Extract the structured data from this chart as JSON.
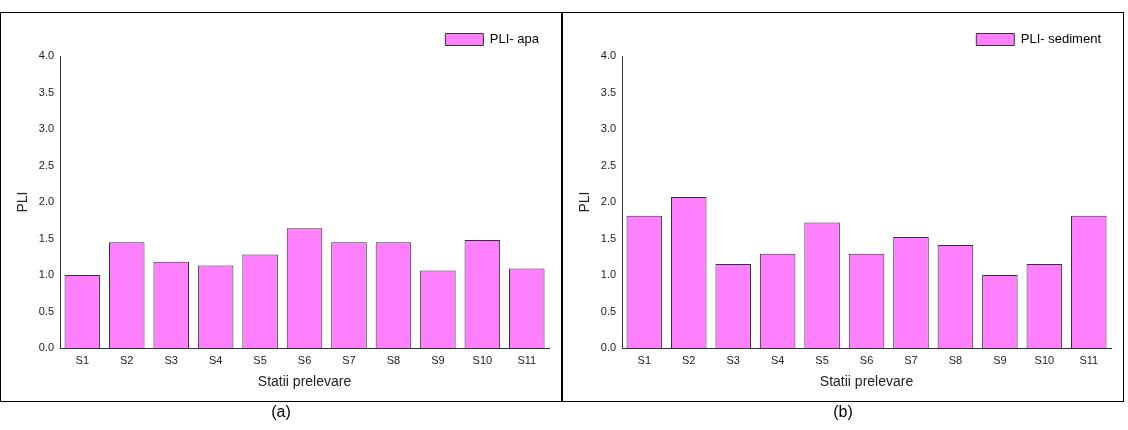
{
  "chart_data": [
    {
      "type": "bar",
      "xlabel": "Statii prelevare",
      "ylabel": "PLI",
      "categories": [
        "S1",
        "S2",
        "S3",
        "S4",
        "S5",
        "S6",
        "S7",
        "S8",
        "S9",
        "S10",
        "S11"
      ],
      "series": [
        {
          "name": "PLI- apa",
          "color": "#ff80ff",
          "values": [
            1.0,
            1.45,
            1.18,
            1.13,
            1.28,
            1.64,
            1.45,
            1.45,
            1.06,
            1.48,
            1.09
          ]
        }
      ],
      "ylim": [
        0,
        4
      ],
      "yticks": [
        {
          "value": 0,
          "label": "0.0"
        },
        {
          "value": 0.5,
          "label": "0.5"
        },
        {
          "value": 1,
          "label": "1.0"
        },
        {
          "value": 1.5,
          "label": "1.5"
        },
        {
          "value": 2,
          "label": "2.0"
        },
        {
          "value": 2.5,
          "label": "2.5"
        },
        {
          "value": 3,
          "label": "3.0"
        },
        {
          "value": 3.5,
          "label": "3.5"
        },
        {
          "value": 4,
          "label": "4.0"
        }
      ],
      "grid": false,
      "legend": "top right",
      "annotations": [
        "(a)"
      ]
    },
    {
      "type": "bar",
      "xlabel": "Statii prelevare",
      "ylabel": "PLI",
      "categories": [
        "S1",
        "S2",
        "S3",
        "S4",
        "S5",
        "S6",
        "S7",
        "S8",
        "S9",
        "S10",
        "S11"
      ],
      "series": [
        {
          "name": "PLI- sediment",
          "color": "#ff80ff",
          "values": [
            1.81,
            2.07,
            1.15,
            1.29,
            1.72,
            1.29,
            1.52,
            1.41,
            1.0,
            1.15,
            1.81
          ]
        }
      ],
      "ylim": [
        0,
        4
      ],
      "yticks": [
        {
          "value": 0,
          "label": "0.0"
        },
        {
          "value": 0.5,
          "label": "0.5"
        },
        {
          "value": 1,
          "label": "1.0"
        },
        {
          "value": 1.5,
          "label": "1.5"
        },
        {
          "value": 2,
          "label": "2.0"
        },
        {
          "value": 2.5,
          "label": "2.5"
        },
        {
          "value": 3,
          "label": "3.0"
        },
        {
          "value": 3.5,
          "label": "3.5"
        },
        {
          "value": 4,
          "label": "4.0"
        }
      ],
      "grid": false,
      "legend": "top right",
      "annotations": [
        "(b)"
      ]
    }
  ]
}
